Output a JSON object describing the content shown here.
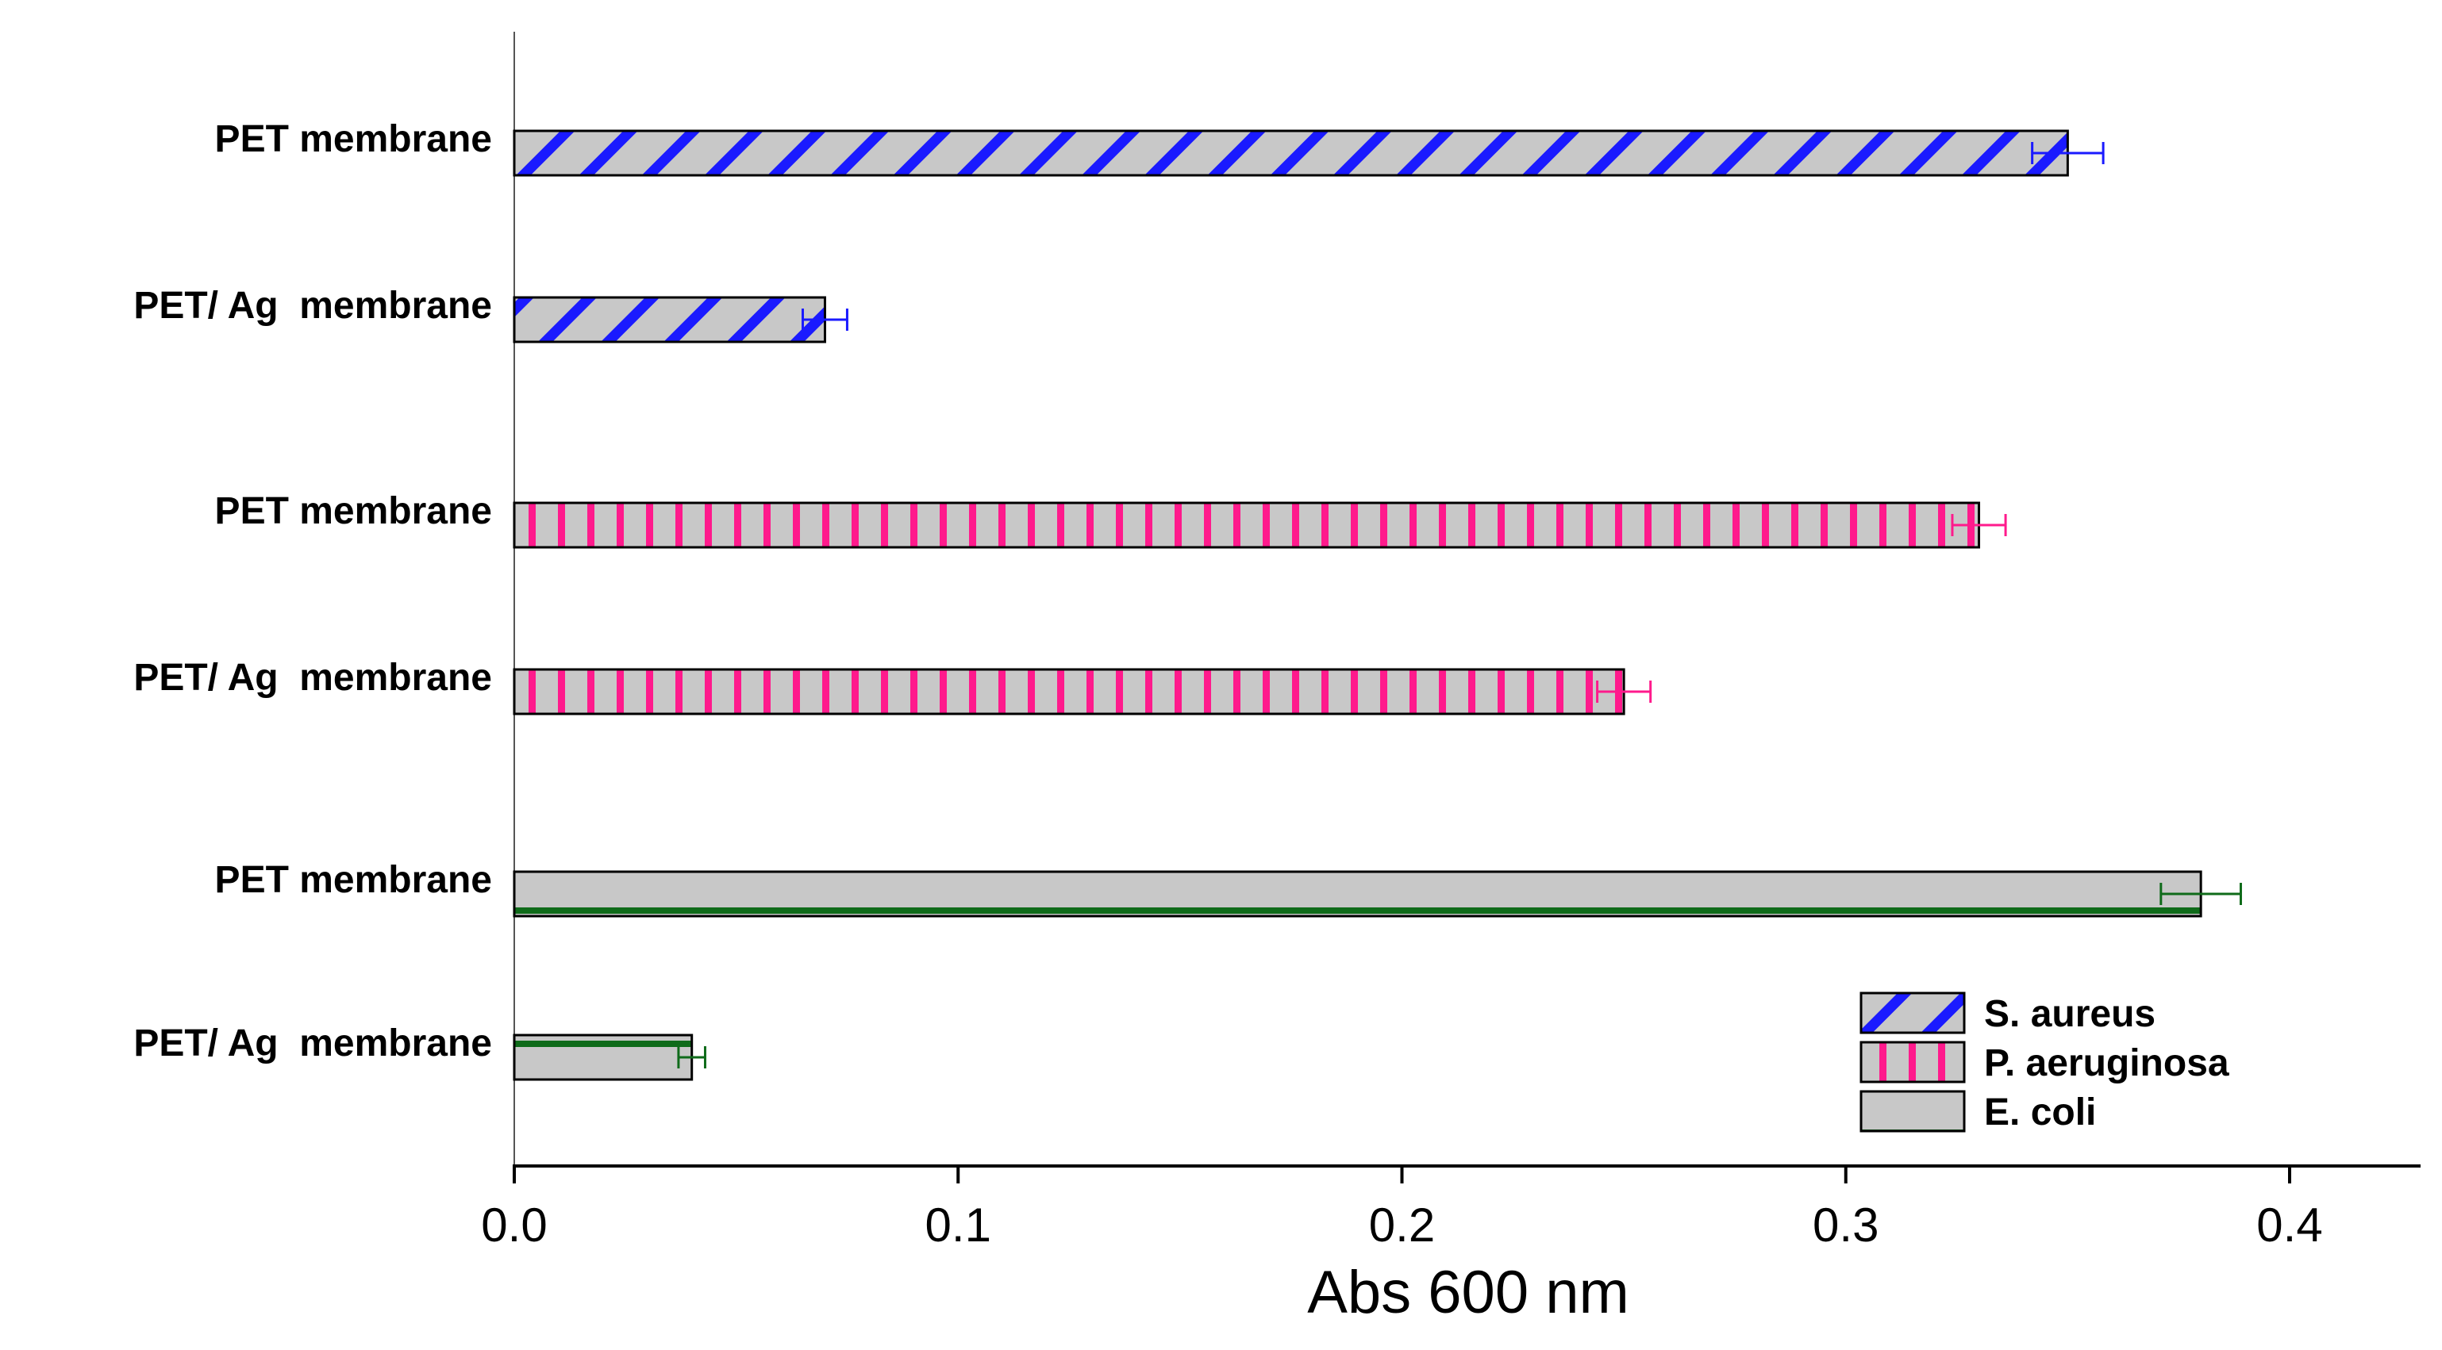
{
  "chart_data": {
    "type": "bar",
    "orientation": "horizontal",
    "title": "",
    "xlabel": "Abs 600 nm",
    "ylabel": "",
    "xlim": [
      0,
      0.43
    ],
    "xticks": [
      "0.0",
      "0.1",
      "0.2",
      "0.3",
      "0.4"
    ],
    "xtick_values": [
      0.0,
      0.1,
      0.2,
      0.3,
      0.4
    ],
    "grid": false,
    "legend_position": "bottom-right",
    "series": [
      {
        "name": "S. aureus",
        "color": "#1a1aff",
        "pattern": "diagonal",
        "categories": [
          "PET membrane",
          "PET/ Ag  membrane"
        ],
        "values": [
          0.35,
          0.07
        ],
        "errors": [
          0.008,
          0.005
        ]
      },
      {
        "name": "P. aeruginosa",
        "color": "#ff1a8c",
        "pattern": "vertical",
        "categories": [
          "PET membrane",
          "PET/ Ag  membrane"
        ],
        "values": [
          0.33,
          0.25
        ],
        "errors": [
          0.006,
          0.006
        ]
      },
      {
        "name": "E. coli",
        "color": "#0f6b1a",
        "pattern": "horizontal",
        "categories": [
          "PET membrane",
          "PET/ Ag  membrane"
        ],
        "values": [
          0.38,
          0.04
        ],
        "errors": [
          0.009,
          0.003
        ]
      }
    ]
  }
}
